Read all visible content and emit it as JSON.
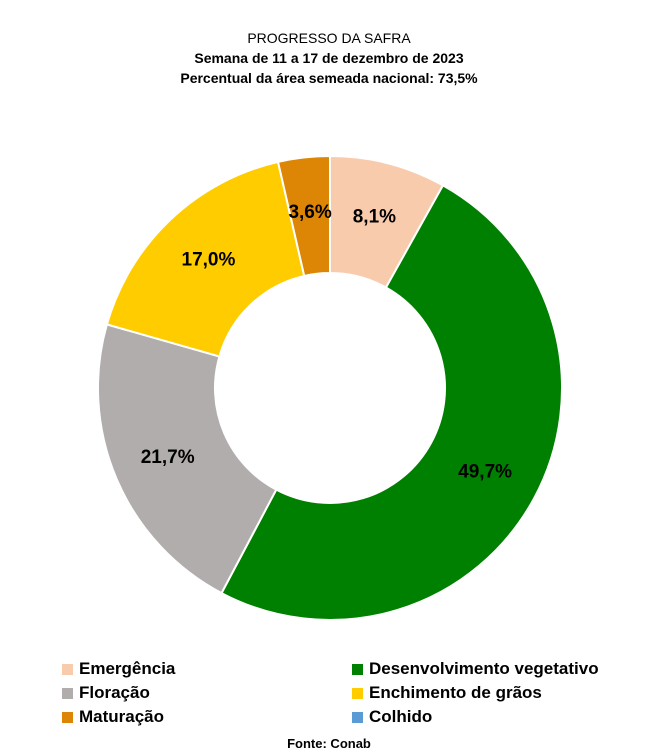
{
  "chart_data": {
    "type": "pie",
    "title": "PROGRESSO DA SAFRA",
    "subtitle": "Semana de 11 a 17 de dezembro de 2023",
    "subtitle2": "Percentual da área semeada nacional: 73,5%",
    "donut": true,
    "slices": [
      {
        "name": "Emergência",
        "value": 8.1,
        "label": "8,1%",
        "color": "#f8cbad"
      },
      {
        "name": "Desenvolvimento vegetativo",
        "value": 49.7,
        "label": "49,7%",
        "color": "#008000"
      },
      {
        "name": "Floração",
        "value": 21.7,
        "label": "21,7%",
        "color": "#b1adac"
      },
      {
        "name": "Enchimento de grãos",
        "value": 17.0,
        "label": "17,0%",
        "color": "#ffcc00"
      },
      {
        "name": "Maturação",
        "value": 3.6,
        "label": "3,6%",
        "color": "#dd8605"
      },
      {
        "name": "Colhido",
        "value": 0,
        "label": "",
        "color": "#5b9bd5"
      }
    ],
    "legend_position": "bottom",
    "source": "Fonte: Conab"
  }
}
